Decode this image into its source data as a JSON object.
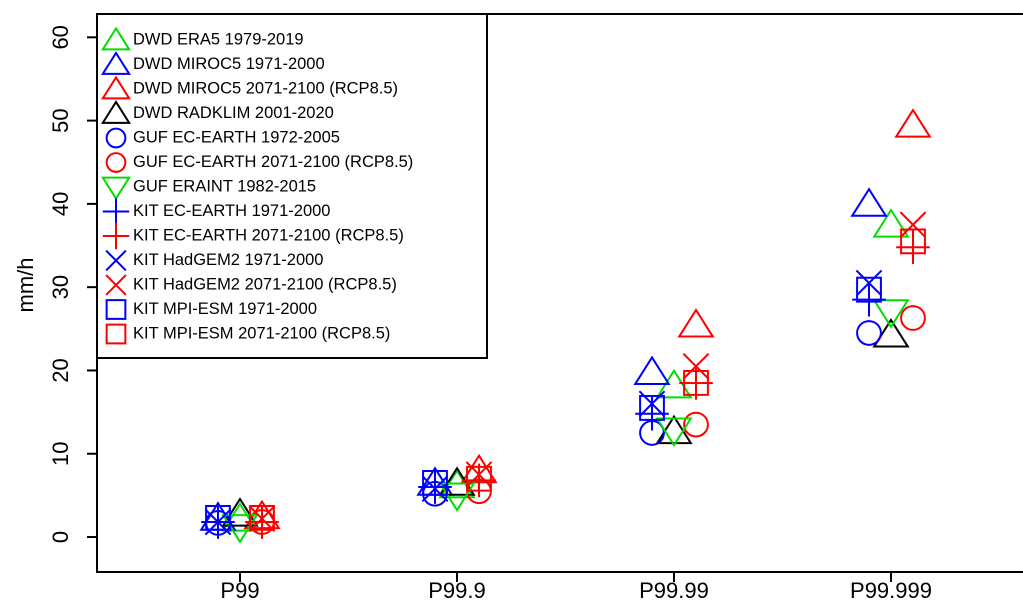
{
  "chart_data": {
    "type": "scatter",
    "y_label": "mm/h",
    "categories": [
      "P99",
      "P99.9",
      "P99.99",
      "P99.999"
    ],
    "ylim": [
      -4.2,
      62.8
    ],
    "yticks": [
      0,
      10,
      20,
      30,
      40,
      50,
      60
    ],
    "legend": "top-left",
    "series": [
      {
        "name": "DWD ERA5 1979-2019",
        "color": "#00dd00",
        "marker": "triangle",
        "values": [
          2.2,
          6.2,
          18.2,
          37.5
        ]
      },
      {
        "name": "DWD MIROC5 1971-2000",
        "color": "#0000ff",
        "marker": "triangle",
        "values": [
          2.3,
          6.5,
          19.8,
          40
        ]
      },
      {
        "name": "DWD MIROC5 2071-2100 (RCP8.5)",
        "color": "#ff0000",
        "marker": "triangle",
        "values": [
          2.5,
          8,
          25.5,
          49.5
        ]
      },
      {
        "name": "DWD RADKLIM 2001-2020",
        "color": "#000000",
        "marker": "triangle",
        "values": [
          2.8,
          6.5,
          12.7,
          24.3
        ]
      },
      {
        "name": "GUF EC-EARTH 1972-2005",
        "color": "#0000ff",
        "marker": "circle",
        "values": [
          1.7,
          5.2,
          12.5,
          24.5
        ]
      },
      {
        "name": "GUF EC-EARTH 2071-2100 (RCP8.5)",
        "color": "#ff0000",
        "marker": "circle",
        "values": [
          1.8,
          5.5,
          13.5,
          26.3
        ]
      },
      {
        "name": "GUF ERAINT 1982-2015",
        "color": "#00dd00",
        "marker": "triangle-down",
        "values": [
          1.2,
          5,
          12.8,
          27
        ]
      },
      {
        "name": "KIT EC-EARTH 1971-2000",
        "color": "#0000ff",
        "marker": "plus",
        "values": [
          1.8,
          6,
          14.8,
          28.5
        ]
      },
      {
        "name": "KIT EC-EARTH 2071-2100 (RCP8.5)",
        "color": "#ff0000",
        "marker": "plus",
        "values": [
          1.8,
          6.8,
          18.5,
          34.8
        ]
      },
      {
        "name": "KIT HadGEM2 1971-2000",
        "color": "#0000ff",
        "marker": "x",
        "values": [
          1.8,
          5.8,
          16,
          30.5
        ]
      },
      {
        "name": "KIT HadGEM2 2071-2100 (RCP8.5)",
        "color": "#ff0000",
        "marker": "x",
        "values": [
          2.2,
          7.5,
          20.5,
          37.5
        ]
      },
      {
        "name": "KIT MPI-ESM 1971-2000",
        "color": "#0000ff",
        "marker": "square",
        "values": [
          2.3,
          6.5,
          15.5,
          29.7
        ]
      },
      {
        "name": "KIT MPI-ESM 2071-2100 (RCP8.5)",
        "color": "#ff0000",
        "marker": "square",
        "values": [
          2.3,
          7,
          18.5,
          35.5
        ]
      }
    ]
  }
}
